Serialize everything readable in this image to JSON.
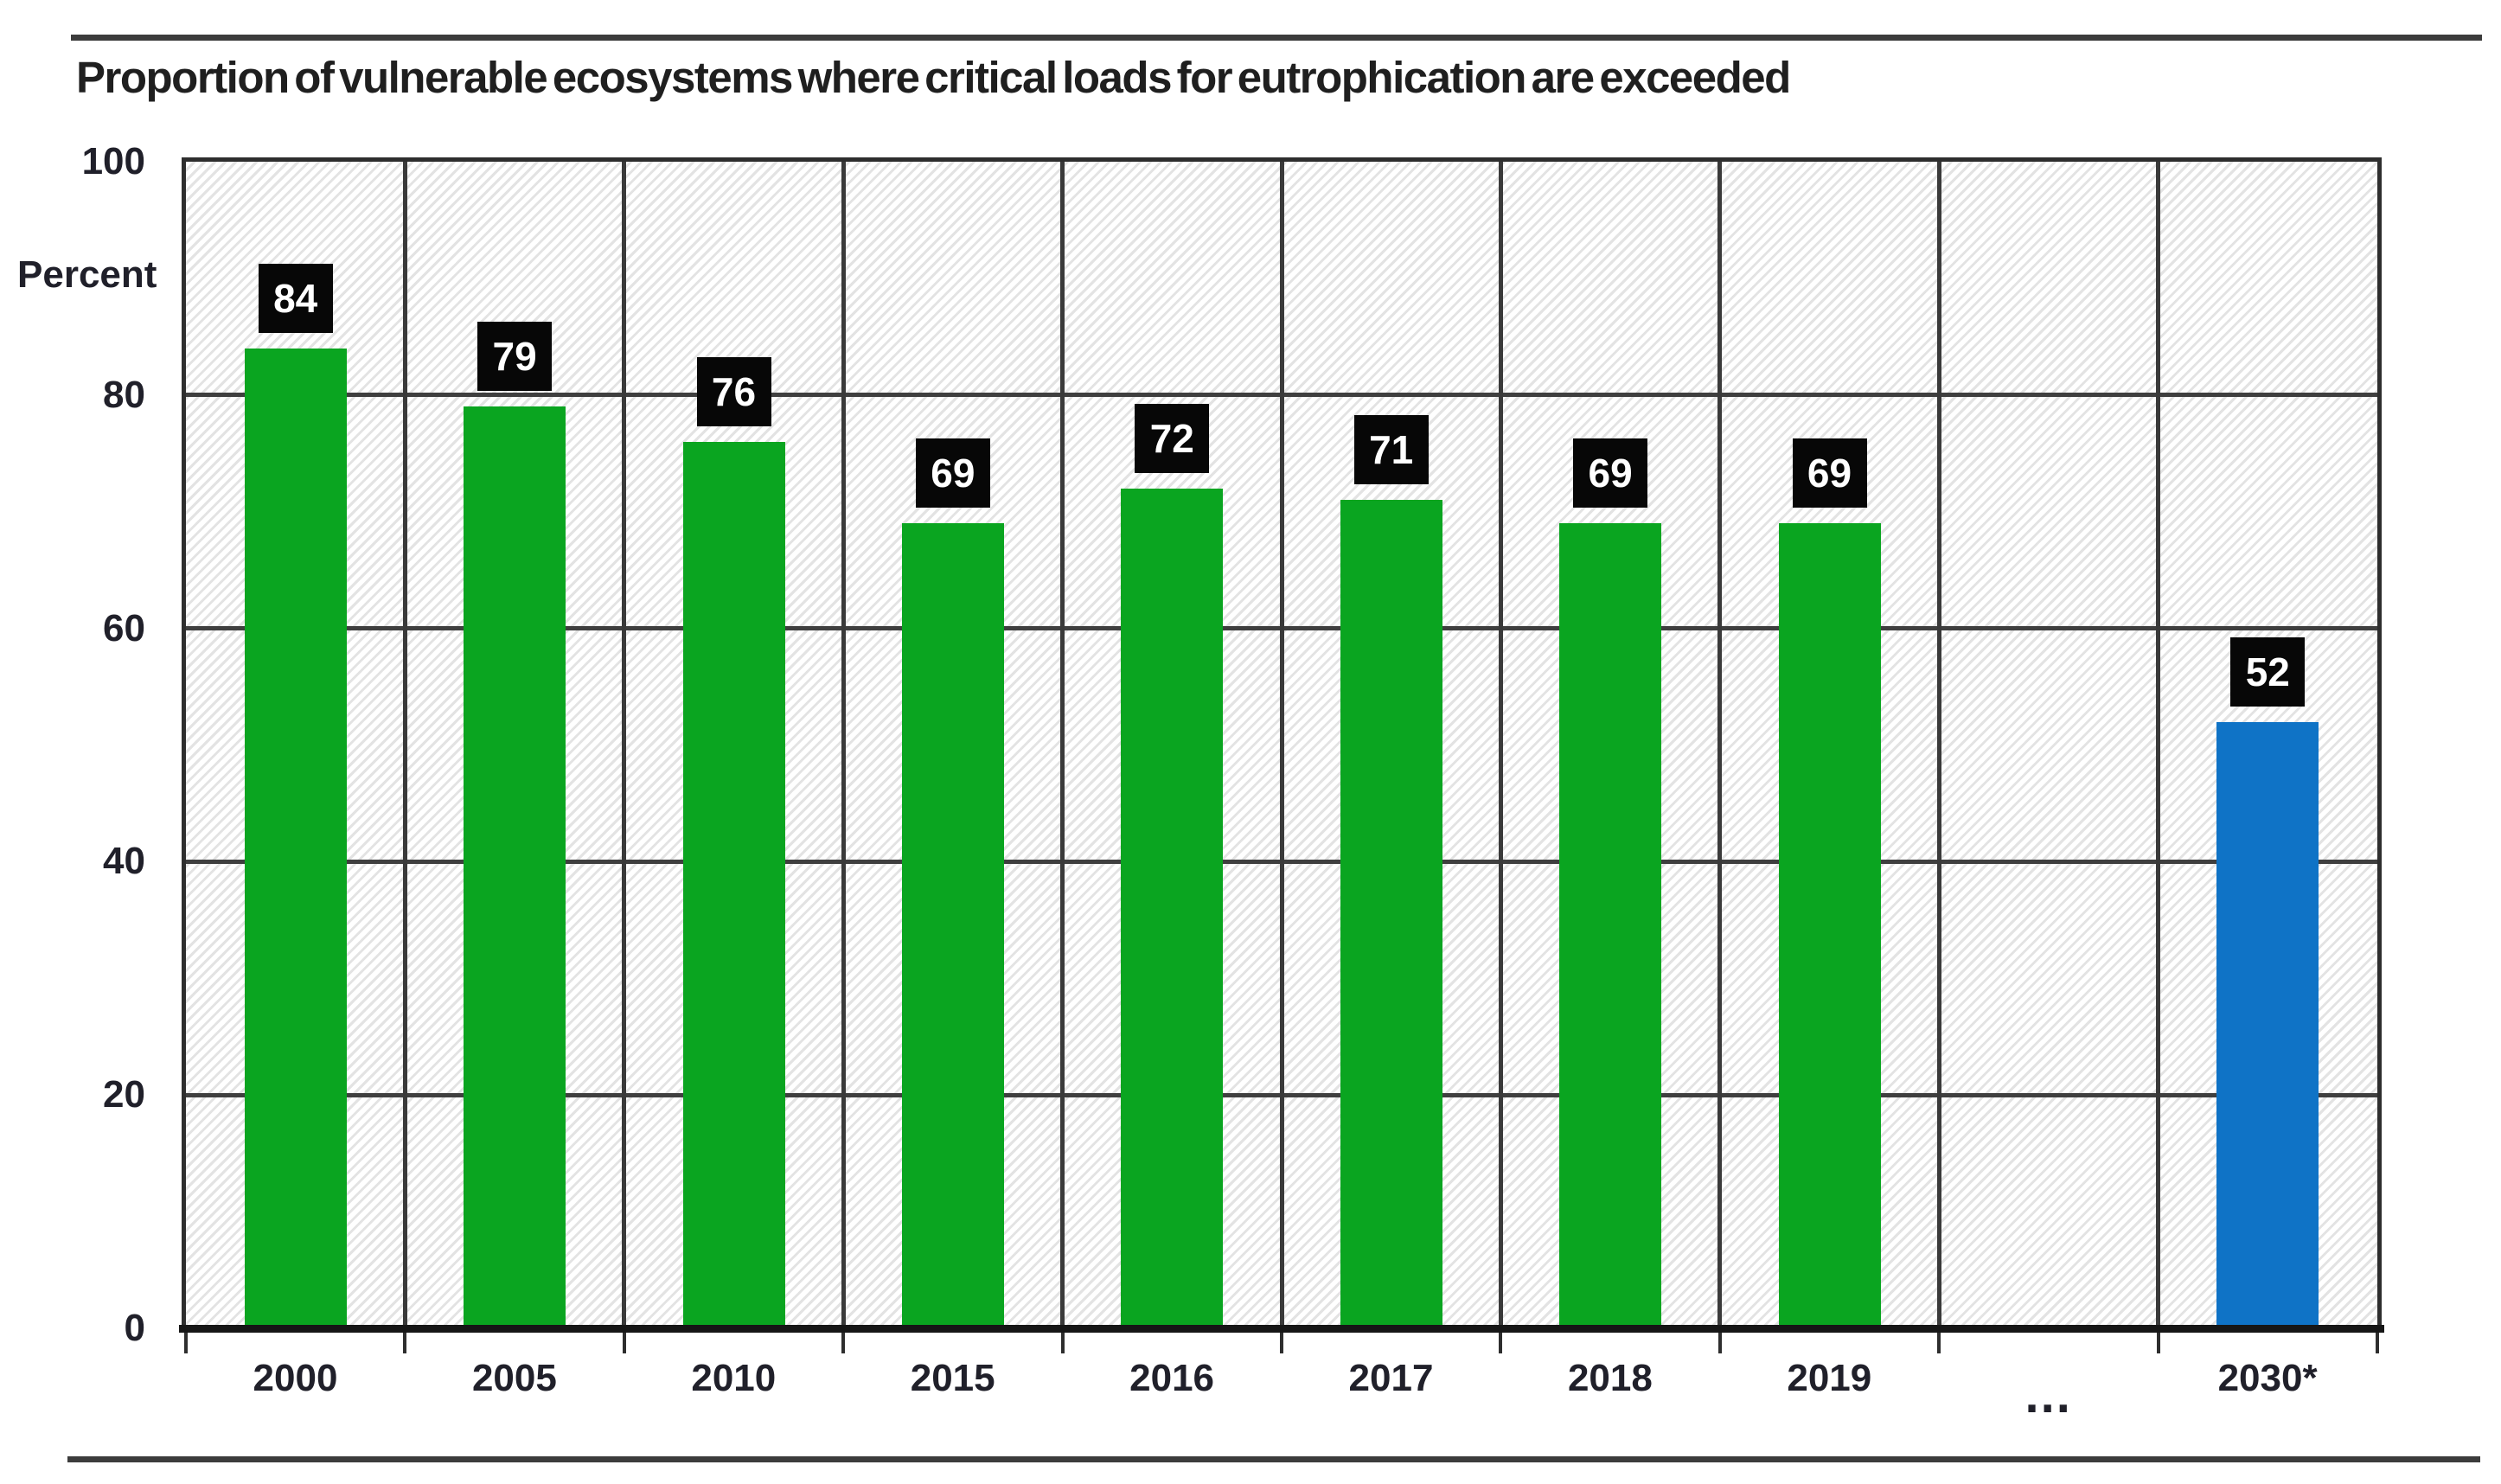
{
  "page": {
    "title": "Proportion of vulnerable ecosystems where critical loads for eutrophication are exceeded"
  },
  "chart_data": {
    "type": "bar",
    "title": "Proportion of vulnerable ecosystems where critical loads for eutrophication are exceeded",
    "xlabel": "",
    "ylabel": "Percent",
    "ylim": [
      0,
      100
    ],
    "yticks": [
      100,
      80,
      60,
      40,
      20,
      0
    ],
    "grid": true,
    "legend_position": "none",
    "categories": [
      "2000",
      "2005",
      "2010",
      "2015",
      "2016",
      "2017",
      "2018",
      "2019",
      "...",
      "2030*"
    ],
    "values": [
      84,
      79,
      76,
      69,
      72,
      71,
      69,
      69,
      null,
      52
    ],
    "bar_colors": [
      "green",
      "green",
      "green",
      "green",
      "green",
      "green",
      "green",
      "green",
      null,
      "blue"
    ],
    "data_label_style": {
      "box_background": "#070707",
      "text_color": "#ffffff"
    },
    "palette": {
      "green": "#0aa520",
      "blue": "#0f73c6"
    }
  }
}
